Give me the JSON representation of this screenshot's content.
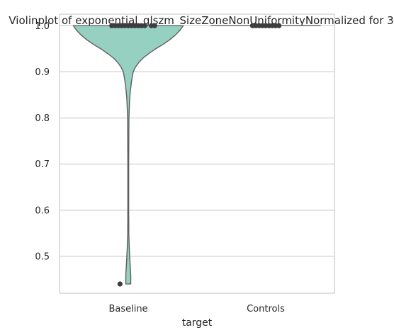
{
  "chart_data": {
    "type": "violin",
    "title": "Violinplot of exponential_glszm_SizeZoneNonUniformityNormalized for 3",
    "xlabel": "target",
    "ylabel": "",
    "ylim": [
      0.42,
      1.025
    ],
    "yticks": [
      0.5,
      0.6,
      0.7,
      0.8,
      0.9,
      1.0
    ],
    "ytick_labels": [
      "0.5",
      "0.6",
      "0.7",
      "0.8",
      "0.9",
      "1.0"
    ],
    "categories": [
      "Baseline",
      "Controls"
    ],
    "grid": true,
    "colors": {
      "violin_fill": "#95d0c0",
      "violin_edge": "#5f5f5f",
      "points": "#3d3d3d",
      "grid": "#cccccc",
      "axes_edge": "#cccccc"
    },
    "series": [
      {
        "name": "Baseline",
        "min": 0.44,
        "max": 1.0,
        "density_profile": [
          {
            "y": 1.0,
            "width": 1.0
          },
          {
            "y": 0.99,
            "width": 0.94
          },
          {
            "y": 0.98,
            "width": 0.86
          },
          {
            "y": 0.97,
            "width": 0.76
          },
          {
            "y": 0.96,
            "width": 0.64
          },
          {
            "y": 0.95,
            "width": 0.5
          },
          {
            "y": 0.94,
            "width": 0.38
          },
          {
            "y": 0.93,
            "width": 0.27
          },
          {
            "y": 0.92,
            "width": 0.19
          },
          {
            "y": 0.91,
            "width": 0.13
          },
          {
            "y": 0.9,
            "width": 0.09
          },
          {
            "y": 0.88,
            "width": 0.06
          },
          {
            "y": 0.86,
            "width": 0.04
          },
          {
            "y": 0.84,
            "width": 0.025
          },
          {
            "y": 0.8,
            "width": 0.012
          },
          {
            "y": 0.7,
            "width": 0.008
          },
          {
            "y": 0.6,
            "width": 0.008
          },
          {
            "y": 0.55,
            "width": 0.01
          },
          {
            "y": 0.52,
            "width": 0.018
          },
          {
            "y": 0.49,
            "width": 0.03
          },
          {
            "y": 0.46,
            "width": 0.045
          },
          {
            "y": 0.44,
            "width": 0.045
          }
        ],
        "points": [
          {
            "y": 1.0,
            "dx": -0.3
          },
          {
            "y": 1.0,
            "dx": -0.24
          },
          {
            "y": 1.0,
            "dx": -0.18
          },
          {
            "y": 1.0,
            "dx": -0.12
          },
          {
            "y": 1.0,
            "dx": -0.06
          },
          {
            "y": 1.0,
            "dx": 0.0
          },
          {
            "y": 1.0,
            "dx": 0.06
          },
          {
            "y": 1.0,
            "dx": 0.12
          },
          {
            "y": 1.0,
            "dx": 0.18
          },
          {
            "y": 1.0,
            "dx": 0.24
          },
          {
            "y": 1.0,
            "dx": 0.3
          },
          {
            "y": 1.0,
            "dx": 0.42
          },
          {
            "y": 1.0,
            "dx": 0.48
          },
          {
            "y": 0.44,
            "dx": -0.15
          }
        ]
      },
      {
        "name": "Controls",
        "min": 1.0,
        "max": 1.0,
        "density_profile": [],
        "points": [
          {
            "y": 1.0,
            "dx": -0.24
          },
          {
            "y": 1.0,
            "dx": -0.18
          },
          {
            "y": 1.0,
            "dx": -0.12
          },
          {
            "y": 1.0,
            "dx": -0.06
          },
          {
            "y": 1.0,
            "dx": 0.0
          },
          {
            "y": 1.0,
            "dx": 0.06
          },
          {
            "y": 1.0,
            "dx": 0.12
          },
          {
            "y": 1.0,
            "dx": 0.18
          },
          {
            "y": 1.0,
            "dx": 0.24
          }
        ]
      }
    ]
  }
}
